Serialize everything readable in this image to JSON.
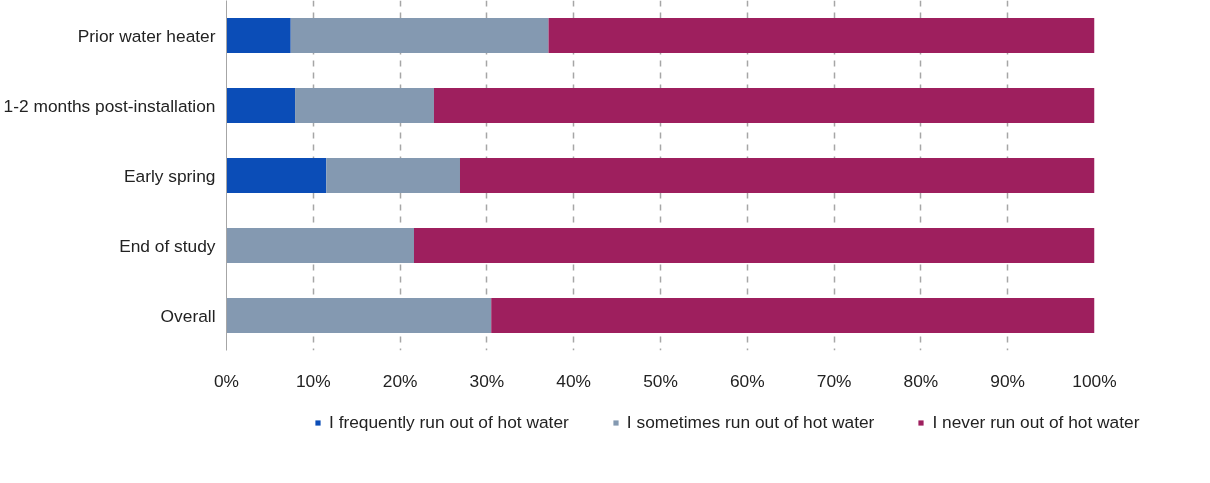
{
  "chart_data": {
    "type": "bar",
    "orientation": "horizontal",
    "stacked": true,
    "categories": [
      "Prior water heater",
      "1-2 months post-installation",
      "Early spring",
      "End of study",
      "Overall"
    ],
    "series": [
      {
        "name": "I frequently run out of hot water",
        "color": "#0b4db7",
        "values": [
          7.4,
          7.9,
          11.5,
          0,
          0
        ]
      },
      {
        "name": "I sometimes run out of hot water",
        "color": "#8499b1",
        "values": [
          29.7,
          16.0,
          15.4,
          21.6,
          30.5
        ]
      },
      {
        "name": "I never run out of hot water",
        "color": "#9e1f5e",
        "values": [
          62.9,
          76.1,
          73.1,
          78.4,
          69.5
        ]
      }
    ],
    "xlim": [
      0,
      100
    ],
    "xticks": [
      {
        "value": 0,
        "label": "0%"
      },
      {
        "value": 10,
        "label": "10%"
      },
      {
        "value": 20,
        "label": "20%"
      },
      {
        "value": 30,
        "label": "30%"
      },
      {
        "value": 40,
        "label": "40%"
      },
      {
        "value": 50,
        "label": "50%"
      },
      {
        "value": 60,
        "label": "60%"
      },
      {
        "value": 70,
        "label": "70%"
      },
      {
        "value": 80,
        "label": "80%"
      },
      {
        "value": 90,
        "label": "90%"
      },
      {
        "value": 100,
        "label": "100%"
      }
    ],
    "grid": "x",
    "legend": "bottom"
  }
}
